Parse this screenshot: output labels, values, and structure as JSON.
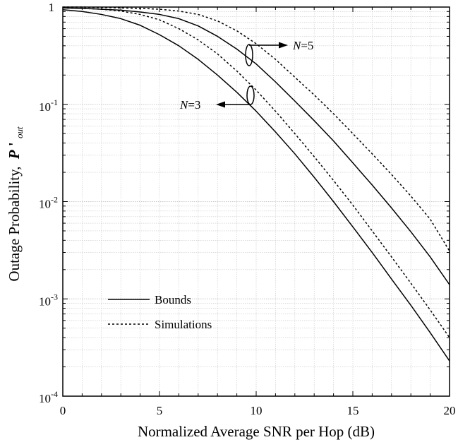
{
  "chart_data": {
    "type": "line",
    "xlabel": "Normalized Average SNR per Hop (dB)",
    "ylabel_main": "Outage Probability,",
    "ylabel_symbol": "P",
    "ylabel_prime": "'",
    "ylabel_sub": "out",
    "xlim": [
      0,
      20
    ],
    "ylim": [
      0.0001,
      1
    ],
    "yscale": "log",
    "grid": true,
    "x_ticks": [
      0,
      5,
      10,
      15,
      20
    ],
    "x_tick_labels": [
      "0",
      "5",
      "10",
      "15",
      "20"
    ],
    "y_ticks": [
      {
        "value": 1,
        "label": "1",
        "exp": ""
      },
      {
        "value": 0.1,
        "label": "10",
        "exp": "-1"
      },
      {
        "value": 0.01,
        "label": "10",
        "exp": "-2"
      },
      {
        "value": 0.001,
        "label": "10",
        "exp": "-3"
      },
      {
        "value": 0.0001,
        "label": "10",
        "exp": "-4"
      }
    ],
    "legend": {
      "placement": "lower-left",
      "entries": [
        {
          "label": "Bounds",
          "style": "solid"
        },
        {
          "label": "Simulations",
          "style": "dotted"
        }
      ]
    },
    "annotations": [
      {
        "italic": "N",
        "text": "=5",
        "direction": "right"
      },
      {
        "italic": "N",
        "text": "=3",
        "direction": "left"
      }
    ],
    "series": [
      {
        "style": "solid",
        "x": [
          0,
          1,
          2,
          3,
          4,
          5,
          6,
          7,
          8,
          9,
          10,
          11,
          12,
          13,
          14,
          15,
          16,
          17,
          18,
          19,
          20
        ],
        "y": [
          0.94,
          0.9,
          0.84,
          0.76,
          0.65,
          0.52,
          0.4,
          0.29,
          0.2,
          0.133,
          0.085,
          0.052,
          0.031,
          0.0178,
          0.01,
          0.0055,
          0.003,
          0.0016,
          0.00086,
          0.00045,
          0.00023
        ]
      },
      {
        "style": "dotted",
        "x": [
          0,
          1,
          2,
          3,
          4,
          5,
          6,
          7,
          8,
          9,
          10,
          11,
          12,
          13,
          14,
          15,
          16,
          17,
          18,
          19,
          20
        ],
        "y": [
          0.98,
          0.97,
          0.95,
          0.91,
          0.84,
          0.74,
          0.6,
          0.46,
          0.33,
          0.22,
          0.14,
          0.085,
          0.05,
          0.029,
          0.0165,
          0.0092,
          0.005,
          0.0027,
          0.00145,
          0.00077,
          0.0004
        ]
      },
      {
        "style": "solid",
        "x": [
          0,
          1,
          2,
          3,
          4,
          5,
          6,
          7,
          8,
          9,
          10,
          11,
          12,
          13,
          14,
          15,
          16,
          17,
          18,
          19,
          20
        ],
        "y": [
          0.98,
          0.97,
          0.95,
          0.93,
          0.89,
          0.84,
          0.76,
          0.64,
          0.5,
          0.37,
          0.26,
          0.17,
          0.108,
          0.068,
          0.042,
          0.025,
          0.0148,
          0.0086,
          0.0049,
          0.0027,
          0.0014
        ]
      },
      {
        "style": "dotted",
        "x": [
          0,
          1,
          2,
          3,
          4,
          5,
          6,
          7,
          8,
          9,
          10,
          11,
          12,
          13,
          14,
          15,
          16,
          17,
          18,
          19,
          20
        ],
        "y": [
          1.0,
          1.0,
          0.99,
          0.98,
          0.97,
          0.95,
          0.91,
          0.84,
          0.72,
          0.57,
          0.42,
          0.29,
          0.19,
          0.125,
          0.08,
          0.05,
          0.031,
          0.019,
          0.0114,
          0.0066,
          0.0031
        ]
      }
    ]
  }
}
